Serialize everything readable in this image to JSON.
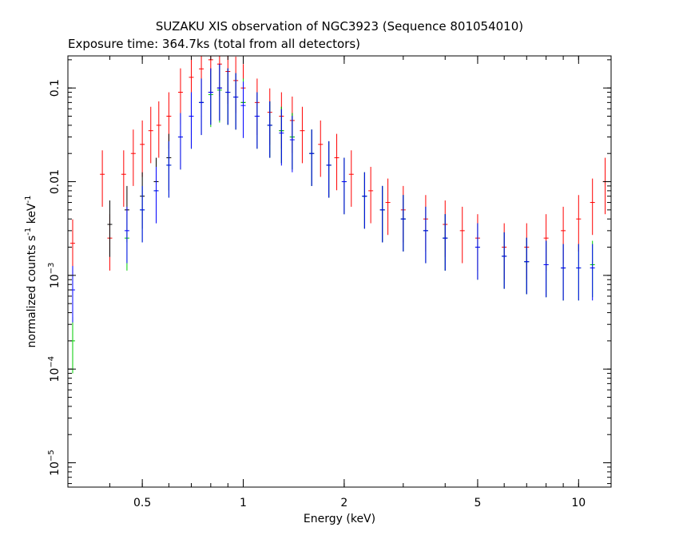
{
  "chart_data": {
    "type": "scatter",
    "title": "SUZAKU XIS observation of NGC3923 (Sequence 801054010)",
    "subtitle": "Exposure time: 364.7ks (total from all detectors)",
    "xlabel": "Energy (keV)",
    "ylabel_main": "normalized counts s",
    "ylabel_exp1": "-1",
    "ylabel_mid": " keV",
    "ylabel_exp2": "-1",
    "x_scale": "log",
    "y_scale": "log",
    "xlim": [
      0.3,
      12.5
    ],
    "ylim": [
      5.5e-06,
      0.22
    ],
    "grid": false,
    "x_ticks": [
      {
        "value": 0.5,
        "label": "0.5"
      },
      {
        "value": 1,
        "label": "1"
      },
      {
        "value": 2,
        "label": "2"
      },
      {
        "value": 5,
        "label": "5"
      },
      {
        "value": 10,
        "label": "10"
      }
    ],
    "y_ticks": [
      {
        "value": 0.1,
        "base": "0.1",
        "exp": ""
      },
      {
        "value": 0.01,
        "base": "0.01",
        "exp": ""
      },
      {
        "value": 0.001,
        "base": "10",
        "exp": "−3"
      },
      {
        "value": 0.0001,
        "base": "10",
        "exp": "−4"
      },
      {
        "value": 1e-05,
        "base": "10",
        "exp": "−5"
      }
    ],
    "series": [
      {
        "color": "#ff0000",
        "points": [
          [
            0.31,
            0.0022
          ],
          [
            0.38,
            0.012
          ],
          [
            0.4,
            0.0025
          ],
          [
            0.44,
            0.012
          ],
          [
            0.47,
            0.02
          ],
          [
            0.5,
            0.025
          ],
          [
            0.53,
            0.035
          ],
          [
            0.56,
            0.04
          ],
          [
            0.6,
            0.05
          ],
          [
            0.65,
            0.09
          ],
          [
            0.7,
            0.13
          ],
          [
            0.75,
            0.16
          ],
          [
            0.8,
            0.2
          ],
          [
            0.85,
            0.18
          ],
          [
            0.9,
            0.15
          ],
          [
            0.95,
            0.12
          ],
          [
            1.0,
            0.1
          ],
          [
            1.1,
            0.07
          ],
          [
            1.2,
            0.055
          ],
          [
            1.3,
            0.05
          ],
          [
            1.4,
            0.045
          ],
          [
            1.5,
            0.035
          ],
          [
            1.7,
            0.025
          ],
          [
            1.9,
            0.018
          ],
          [
            2.1,
            0.012
          ],
          [
            2.4,
            0.008
          ],
          [
            2.7,
            0.006
          ],
          [
            3.0,
            0.005
          ],
          [
            3.5,
            0.004
          ],
          [
            4.0,
            0.0035
          ],
          [
            4.5,
            0.003
          ],
          [
            5.0,
            0.0025
          ],
          [
            6.0,
            0.002
          ],
          [
            7.0,
            0.002
          ],
          [
            8.0,
            0.0025
          ],
          [
            9.0,
            0.003
          ],
          [
            10.0,
            0.004
          ],
          [
            11.0,
            0.006
          ],
          [
            12.0,
            0.01
          ]
        ]
      },
      {
        "color": "#000000",
        "points": [
          [
            0.4,
            0.0035
          ],
          [
            0.45,
            0.005
          ],
          [
            0.5,
            0.007
          ],
          [
            0.55,
            0.01
          ],
          [
            0.6,
            0.018
          ],
          [
            0.65,
            0.03
          ],
          [
            0.7,
            0.05
          ],
          [
            0.75,
            0.07
          ],
          [
            0.8,
            0.09
          ],
          [
            0.85,
            0.1
          ],
          [
            0.9,
            0.09
          ],
          [
            0.95,
            0.08
          ],
          [
            1.0,
            0.07
          ],
          [
            1.1,
            0.05
          ],
          [
            1.2,
            0.04
          ],
          [
            1.3,
            0.035
          ],
          [
            1.4,
            0.03
          ],
          [
            1.6,
            0.02
          ],
          [
            1.8,
            0.015
          ],
          [
            2.0,
            0.01
          ],
          [
            2.3,
            0.007
          ],
          [
            2.6,
            0.005
          ],
          [
            3.0,
            0.004
          ],
          [
            3.5,
            0.003
          ],
          [
            4.0,
            0.0025
          ],
          [
            5.0,
            0.002
          ],
          [
            6.0,
            0.0016
          ],
          [
            7.0,
            0.0014
          ],
          [
            8.0,
            0.0013
          ],
          [
            9.0,
            0.0012
          ]
        ]
      },
      {
        "color": "#00cc00",
        "points": [
          [
            0.31,
            0.0002
          ],
          [
            0.45,
            0.0025
          ],
          [
            0.5,
            0.005
          ],
          [
            0.55,
            0.008
          ],
          [
            0.6,
            0.015
          ],
          [
            0.65,
            0.03
          ],
          [
            0.7,
            0.05
          ],
          [
            0.75,
            0.07
          ],
          [
            0.8,
            0.085
          ],
          [
            0.85,
            0.095
          ],
          [
            0.9,
            0.09
          ],
          [
            0.95,
            0.08
          ],
          [
            1.0,
            0.07
          ],
          [
            1.1,
            0.05
          ],
          [
            1.2,
            0.04
          ],
          [
            1.3,
            0.035
          ],
          [
            1.4,
            0.03
          ],
          [
            1.6,
            0.02
          ],
          [
            1.8,
            0.015
          ],
          [
            2.0,
            0.01
          ],
          [
            2.3,
            0.007
          ],
          [
            2.6,
            0.005
          ],
          [
            3.0,
            0.004
          ],
          [
            3.5,
            0.003
          ],
          [
            4.0,
            0.0025
          ],
          [
            5.0,
            0.002
          ],
          [
            6.0,
            0.0016
          ],
          [
            7.0,
            0.0014
          ],
          [
            8.0,
            0.0013
          ],
          [
            9.0,
            0.0012
          ],
          [
            10.0,
            0.0012
          ],
          [
            11.0,
            0.0013
          ]
        ]
      },
      {
        "color": "#0000ff",
        "points": [
          [
            0.31,
            0.0007
          ],
          [
            0.45,
            0.003
          ],
          [
            0.5,
            0.005
          ],
          [
            0.55,
            0.008
          ],
          [
            0.6,
            0.015
          ],
          [
            0.65,
            0.03
          ],
          [
            0.7,
            0.05
          ],
          [
            0.75,
            0.07
          ],
          [
            0.8,
            0.09
          ],
          [
            0.85,
            0.1
          ],
          [
            0.9,
            0.09
          ],
          [
            0.95,
            0.08
          ],
          [
            1.0,
            0.065
          ],
          [
            1.1,
            0.05
          ],
          [
            1.2,
            0.04
          ],
          [
            1.3,
            0.033
          ],
          [
            1.4,
            0.028
          ],
          [
            1.6,
            0.02
          ],
          [
            1.8,
            0.015
          ],
          [
            2.0,
            0.01
          ],
          [
            2.3,
            0.007
          ],
          [
            2.6,
            0.005
          ],
          [
            3.0,
            0.004
          ],
          [
            3.5,
            0.003
          ],
          [
            4.0,
            0.0025
          ],
          [
            5.0,
            0.002
          ],
          [
            6.0,
            0.0016
          ],
          [
            7.0,
            0.0014
          ],
          [
            8.0,
            0.0013
          ],
          [
            9.0,
            0.0012
          ],
          [
            10.0,
            0.0012
          ],
          [
            11.0,
            0.0012
          ]
        ]
      }
    ]
  }
}
